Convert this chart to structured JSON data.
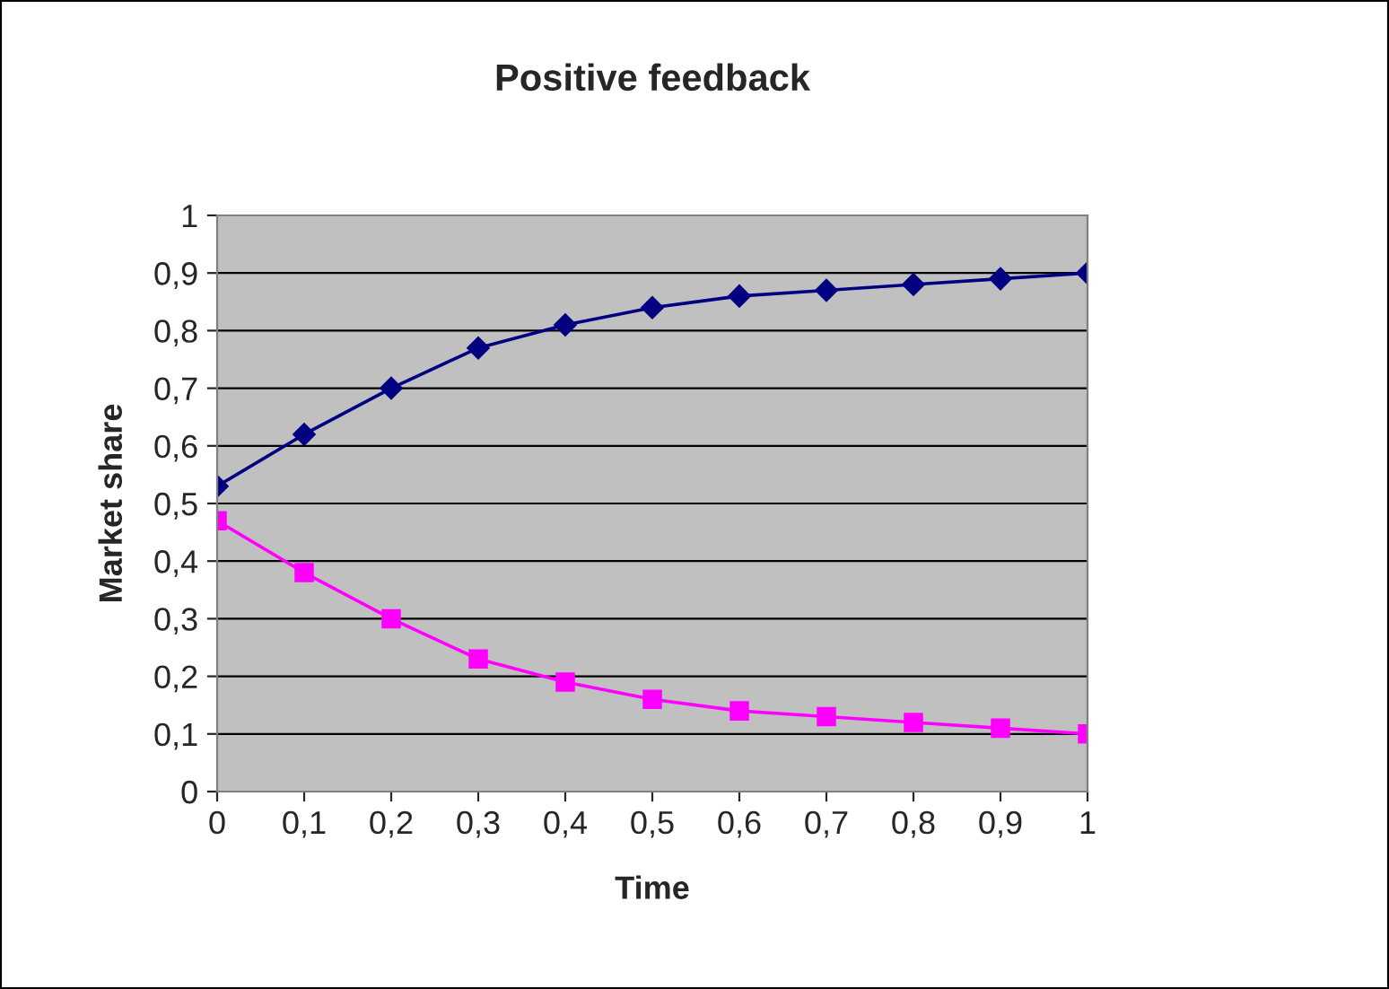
{
  "chart_data": {
    "type": "line",
    "title": "Positive feedback",
    "xlabel": "Time",
    "ylabel": "Market share",
    "x": [
      0,
      0.1,
      0.2,
      0.3,
      0.4,
      0.5,
      0.6,
      0.7,
      0.8,
      0.9,
      1
    ],
    "series": [
      {
        "color": "#000080",
        "marker": "diamond",
        "values": [
          0.53,
          0.62,
          0.7,
          0.77,
          0.81,
          0.84,
          0.86,
          0.87,
          0.88,
          0.89,
          0.9
        ]
      },
      {
        "color": "#ff00ff",
        "marker": "square",
        "values": [
          0.47,
          0.38,
          0.3,
          0.23,
          0.19,
          0.16,
          0.14,
          0.13,
          0.12,
          0.11,
          0.1
        ]
      }
    ],
    "xlim": [
      0,
      1
    ],
    "xticks": [
      0,
      {
        "value": 0.1,
        "label": "0,1"
      },
      {
        "value": 0.2,
        "label": "0,2"
      },
      {
        "value": 0.3,
        "label": "0,3"
      },
      {
        "value": 0.4,
        "label": "0,4"
      },
      {
        "value": 0.5,
        "label": "0,5"
      },
      {
        "value": 0.6,
        "label": "0,6"
      },
      {
        "value": 0.7,
        "label": "0,7"
      },
      {
        "value": 0.8,
        "label": "0,8"
      },
      {
        "value": 0.9,
        "label": "0,9"
      },
      1
    ],
    "ylim": [
      0,
      1
    ],
    "yticks": [
      0,
      {
        "value": 0.1,
        "label": "0,1"
      },
      {
        "value": 0.2,
        "label": "0,2"
      },
      {
        "value": 0.3,
        "label": "0,3"
      },
      {
        "value": 0.4,
        "label": "0,4"
      },
      {
        "value": 0.5,
        "label": "0,5"
      },
      {
        "value": 0.6,
        "label": "0,6"
      },
      {
        "value": 0.7,
        "label": "0,7"
      },
      {
        "value": 0.8,
        "label": "0,8"
      },
      {
        "value": 0.9,
        "label": "0,9"
      },
      1
    ],
    "grid": "y",
    "line_style": "solid"
  }
}
